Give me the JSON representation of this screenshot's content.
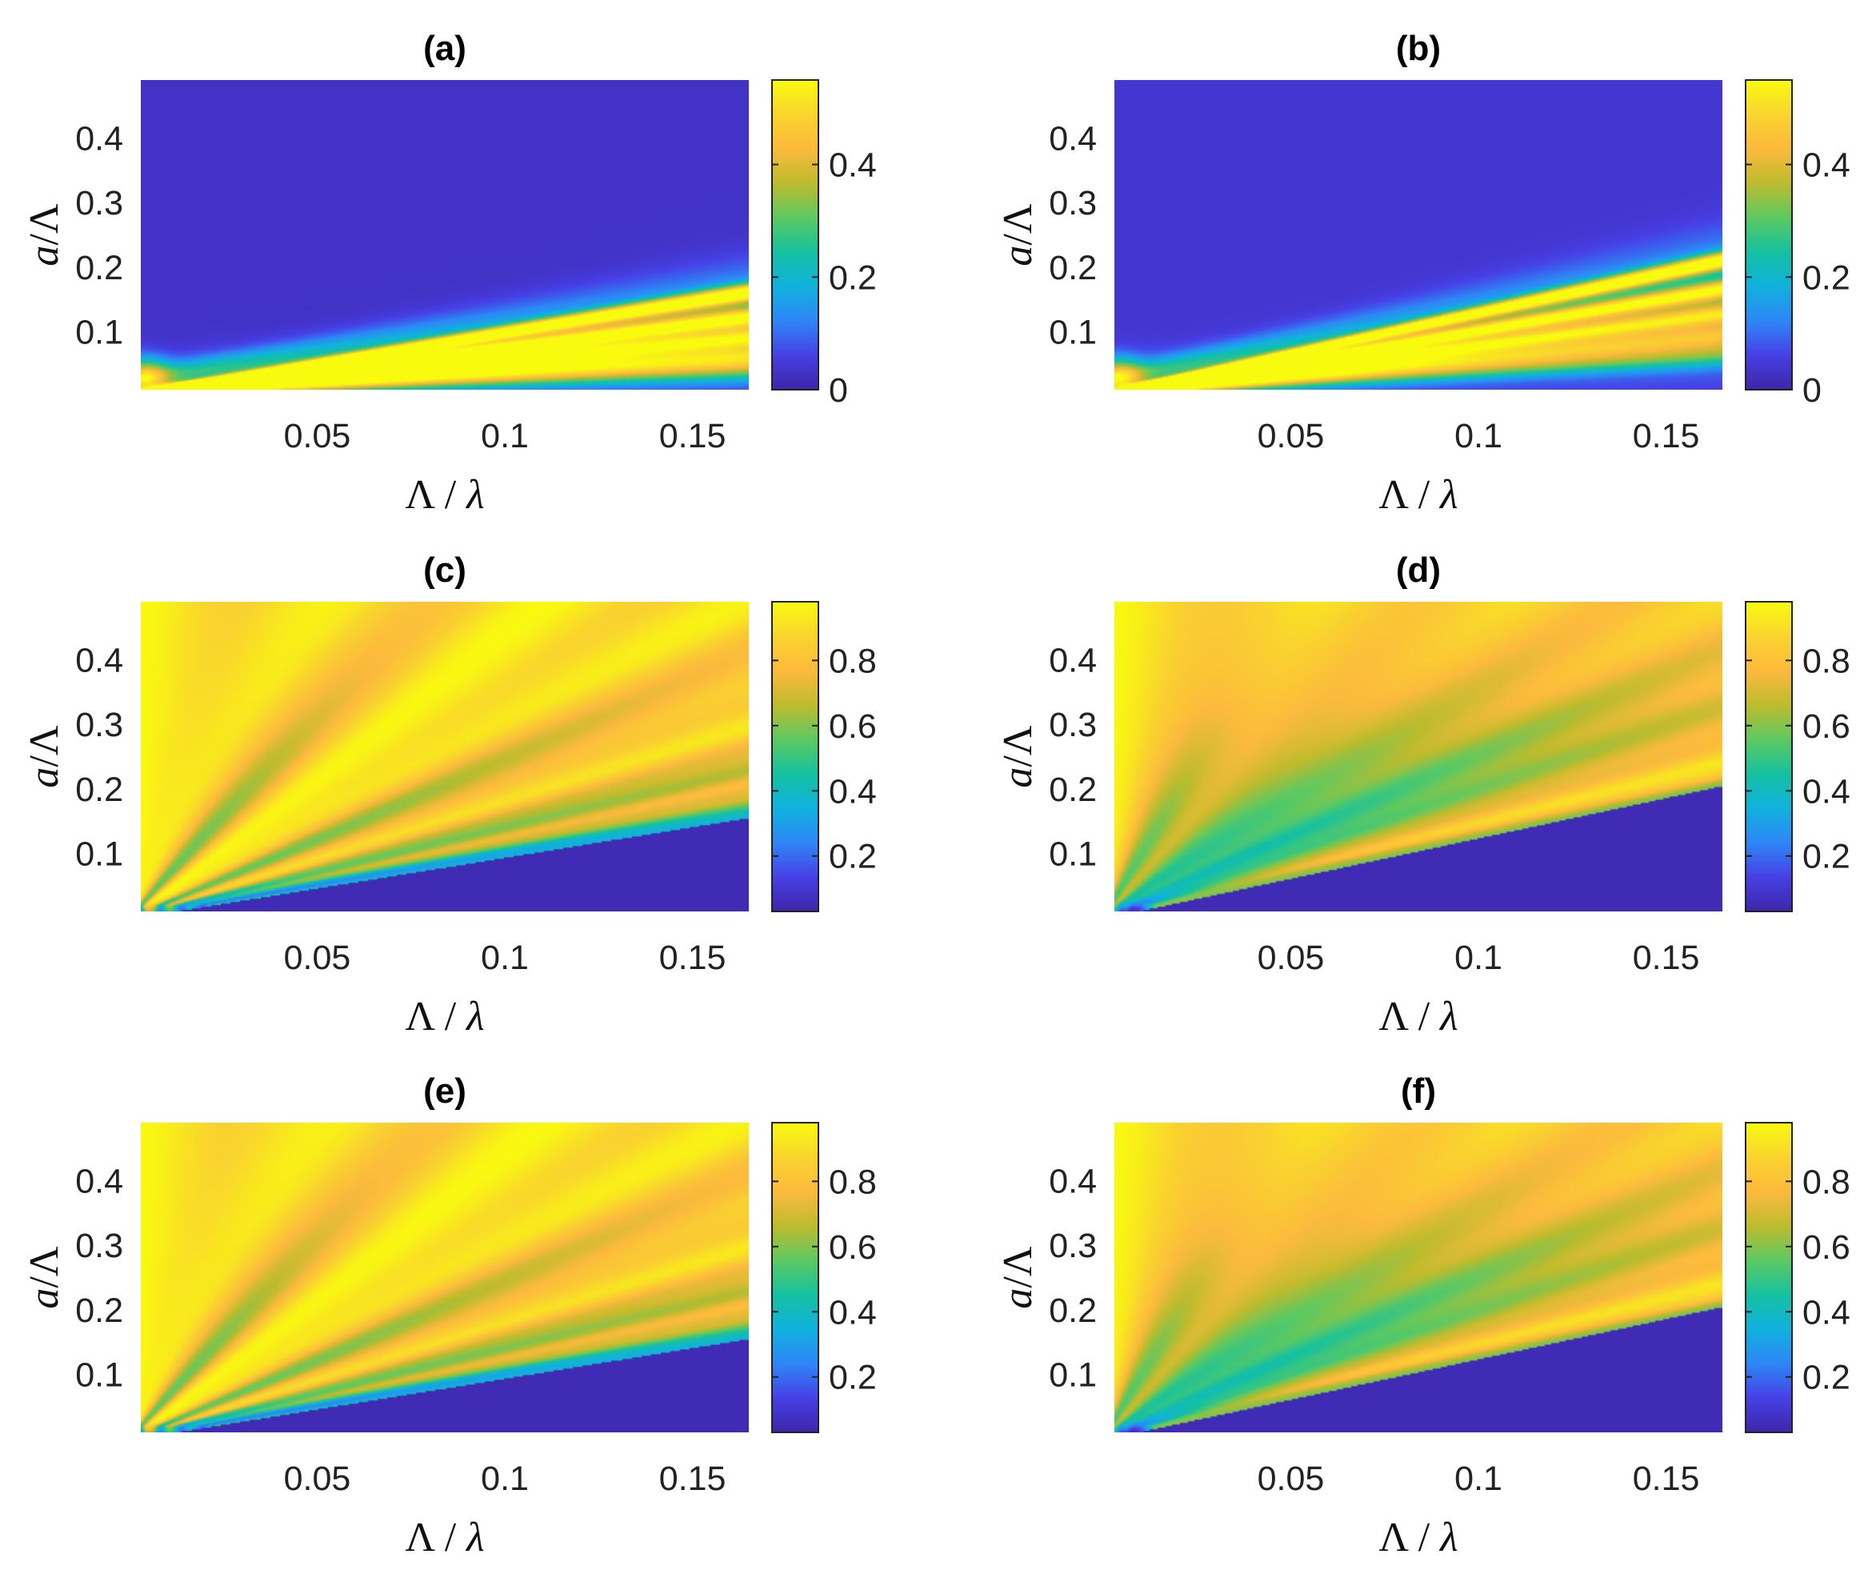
{
  "figure": {
    "panel_order": [
      "a",
      "b",
      "c",
      "d",
      "e",
      "f"
    ]
  },
  "colormap": {
    "name": "parula-like",
    "stops": [
      "#3e26a8",
      "#4740e6",
      "#2e87f7",
      "#10b2dd",
      "#15c1a0",
      "#5dc961",
      "#bebb2d",
      "#fcba3d",
      "#f9d42e",
      "#f9fb0e"
    ]
  },
  "chart_data": [
    {
      "type": "heatmap",
      "panel": "a",
      "title": "(a)",
      "xlabel_parts": [
        "Λ",
        " / ",
        "λ"
      ],
      "ylabel_parts": [
        "a",
        "/Λ"
      ],
      "xlim": [
        0.003,
        0.165
      ],
      "ylim": [
        0.01,
        0.49
      ],
      "xticks": [
        0.05,
        0.1,
        0.15
      ],
      "xtick_labels": [
        "0.05",
        "0.1",
        "0.15"
      ],
      "yticks": [
        0.1,
        0.2,
        0.3,
        0.4
      ],
      "ytick_labels": [
        "0.1",
        "0.2",
        "0.3",
        "0.4"
      ],
      "clim": [
        0,
        0.55
      ],
      "colorbar_ticks": [
        0,
        0.2,
        0.4
      ],
      "colorbar_labels": [
        "0",
        "0.2",
        "0.4"
      ],
      "pattern": "resonance-lines",
      "line_slopes": [
        0.95,
        0.72,
        0.53,
        0.36,
        0.24
      ],
      "peak_value": 0.55,
      "background_value": 0.03
    },
    {
      "type": "heatmap",
      "panel": "b",
      "title": "(b)",
      "xlabel_parts": [
        "Λ",
        " / ",
        "λ"
      ],
      "ylabel_parts": [
        "a",
        "/Λ"
      ],
      "xlim": [
        0.003,
        0.165
      ],
      "ylim": [
        0.01,
        0.49
      ],
      "xticks": [
        0.05,
        0.1,
        0.15
      ],
      "xtick_labels": [
        "0.05",
        "0.1",
        "0.15"
      ],
      "yticks": [
        0.1,
        0.2,
        0.3,
        0.4
      ],
      "ytick_labels": [
        "0.1",
        "0.2",
        "0.3",
        "0.4"
      ],
      "clim": [
        0,
        0.55
      ],
      "colorbar_ticks": [
        0,
        0.2,
        0.4
      ],
      "colorbar_labels": [
        "0",
        "0.2",
        "0.4"
      ],
      "pattern": "resonance-lines",
      "line_slopes": [
        1.25,
        0.98,
        0.75,
        0.55,
        0.38
      ],
      "peak_value": 0.55,
      "background_value": 0.04
    },
    {
      "type": "heatmap",
      "panel": "c",
      "title": "(c)",
      "xlabel_parts": [
        "Λ",
        " / ",
        "λ"
      ],
      "ylabel_parts": [
        "a",
        "/Λ"
      ],
      "xlim": [
        0.003,
        0.165
      ],
      "ylim": [
        0.01,
        0.49
      ],
      "xticks": [
        0.05,
        0.1,
        0.15
      ],
      "xtick_labels": [
        "0.05",
        "0.1",
        "0.15"
      ],
      "yticks": [
        0.1,
        0.2,
        0.3,
        0.4
      ],
      "ytick_labels": [
        "0.1",
        "0.2",
        "0.3",
        "0.4"
      ],
      "clim": [
        0.03,
        0.98
      ],
      "colorbar_ticks": [
        0.2,
        0.4,
        0.6,
        0.8
      ],
      "colorbar_labels": [
        "0.2",
        "0.4",
        "0.6",
        "0.8"
      ],
      "pattern": "transmission-lobes",
      "cutoff_slope": 0.95,
      "lobe_slopes": [
        6.5,
        2.4,
        1.45,
        1.05
      ],
      "low_value": 0.04,
      "high_value": 0.98
    },
    {
      "type": "heatmap",
      "panel": "d",
      "title": "(d)",
      "xlabel_parts": [
        "Λ",
        " / ",
        "λ"
      ],
      "ylabel_parts": [
        "a",
        "/Λ"
      ],
      "xlim": [
        0.003,
        0.165
      ],
      "ylim": [
        0.01,
        0.49
      ],
      "xticks": [
        0.05,
        0.1,
        0.15
      ],
      "xtick_labels": [
        "0.05",
        "0.1",
        "0.15"
      ],
      "yticks": [
        0.1,
        0.2,
        0.3,
        0.4
      ],
      "ytick_labels": [
        "0.1",
        "0.2",
        "0.3",
        "0.4"
      ],
      "clim": [
        0.03,
        0.98
      ],
      "colorbar_ticks": [
        0.2,
        0.4,
        0.6,
        0.8
      ],
      "colorbar_labels": [
        "0.2",
        "0.4",
        "0.6",
        "0.8"
      ],
      "pattern": "transmission-lobes",
      "cutoff_slope": 1.25,
      "lobe_slopes": [
        10.0,
        4.5,
        2.8,
        1.95
      ],
      "low_value": 0.04,
      "high_value": 0.98
    },
    {
      "type": "heatmap",
      "panel": "e",
      "title": "(e)",
      "xlabel_parts": [
        "Λ",
        " / ",
        "λ"
      ],
      "ylabel_parts": [
        "a",
        "/Λ"
      ],
      "xlim": [
        0.003,
        0.165
      ],
      "ylim": [
        0.01,
        0.49
      ],
      "xticks": [
        0.05,
        0.1,
        0.15
      ],
      "xtick_labels": [
        "0.05",
        "0.1",
        "0.15"
      ],
      "yticks": [
        0.1,
        0.2,
        0.3,
        0.4
      ],
      "ytick_labels": [
        "0.1",
        "0.2",
        "0.3",
        "0.4"
      ],
      "clim": [
        0.03,
        0.98
      ],
      "colorbar_ticks": [
        0.2,
        0.4,
        0.6,
        0.8
      ],
      "colorbar_labels": [
        "0.2",
        "0.4",
        "0.6",
        "0.8"
      ],
      "pattern": "transmission-lobes",
      "cutoff_slope": 0.95,
      "lobe_slopes": [
        6.5,
        2.4,
        1.45,
        1.05
      ],
      "low_value": 0.04,
      "high_value": 0.98
    },
    {
      "type": "heatmap",
      "panel": "f",
      "title": "(f)",
      "xlabel_parts": [
        "Λ",
        " / ",
        "λ"
      ],
      "ylabel_parts": [
        "a",
        "/Λ"
      ],
      "xlim": [
        0.003,
        0.165
      ],
      "ylim": [
        0.01,
        0.49
      ],
      "xticks": [
        0.05,
        0.1,
        0.15
      ],
      "xtick_labels": [
        "0.05",
        "0.1",
        "0.15"
      ],
      "yticks": [
        0.1,
        0.2,
        0.3,
        0.4
      ],
      "ytick_labels": [
        "0.1",
        "0.2",
        "0.3",
        "0.4"
      ],
      "clim": [
        0.03,
        0.98
      ],
      "colorbar_ticks": [
        0.2,
        0.4,
        0.6,
        0.8
      ],
      "colorbar_labels": [
        "0.2",
        "0.4",
        "0.6",
        "0.8"
      ],
      "pattern": "transmission-lobes",
      "cutoff_slope": 1.25,
      "lobe_slopes": [
        10.0,
        4.5,
        2.8,
        1.95
      ],
      "low_value": 0.04,
      "high_value": 0.98
    }
  ]
}
